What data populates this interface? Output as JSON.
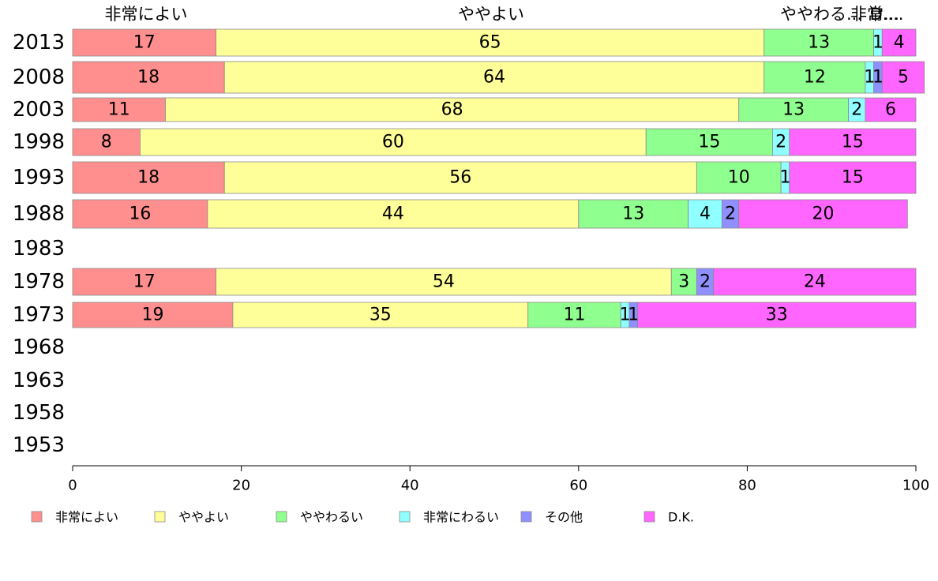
{
  "chart_data": {
    "type": "bar",
    "orientation": "horizontal",
    "stacked": true,
    "categories": [
      "2013",
      "2008",
      "2003",
      "1998",
      "1993",
      "1988",
      "1983",
      "1978",
      "1973",
      "1968",
      "1963",
      "1958",
      "1953"
    ],
    "series": [
      {
        "name": "非常によい",
        "color": "#ff8f8f",
        "values": [
          17,
          18,
          11,
          8,
          18,
          16,
          null,
          17,
          19,
          null,
          null,
          null,
          null
        ]
      },
      {
        "name": "ややよい",
        "color": "#ffff99",
        "values": [
          65,
          64,
          68,
          60,
          56,
          44,
          null,
          54,
          35,
          null,
          null,
          null,
          null
        ]
      },
      {
        "name": "ややわるい",
        "color": "#8fff8f",
        "values": [
          13,
          12,
          13,
          15,
          10,
          13,
          null,
          3,
          11,
          null,
          null,
          null,
          null
        ]
      },
      {
        "name": "非常にわるい",
        "color": "#8fffff",
        "values": [
          1,
          1,
          2,
          2,
          1,
          4,
          null,
          0,
          1,
          null,
          null,
          null,
          null
        ]
      },
      {
        "name": "その他",
        "color": "#8f8fff",
        "values": [
          0,
          1,
          0,
          0,
          0,
          2,
          null,
          2,
          1,
          null,
          null,
          null,
          null
        ]
      },
      {
        "name": "D.K.",
        "color": "#ff66ff",
        "values": [
          4,
          5,
          6,
          15,
          15,
          20,
          null,
          24,
          33,
          null,
          null,
          null,
          null
        ]
      }
    ],
    "top_labels": [
      "非常によい",
      "ややよい",
      "ややわるい",
      "非常にわるい",
      "D.K."
    ],
    "top_labels_display": [
      "非常によい",
      "ややよい",
      "ややわる...",
      "非常...",
      "D...."
    ],
    "xlim": [
      0,
      100
    ],
    "xticks": [
      0,
      20,
      40,
      60,
      80,
      100
    ],
    "xlabel": "",
    "ylabel": "",
    "title": "",
    "grid": false,
    "legend_position": "bottom"
  }
}
